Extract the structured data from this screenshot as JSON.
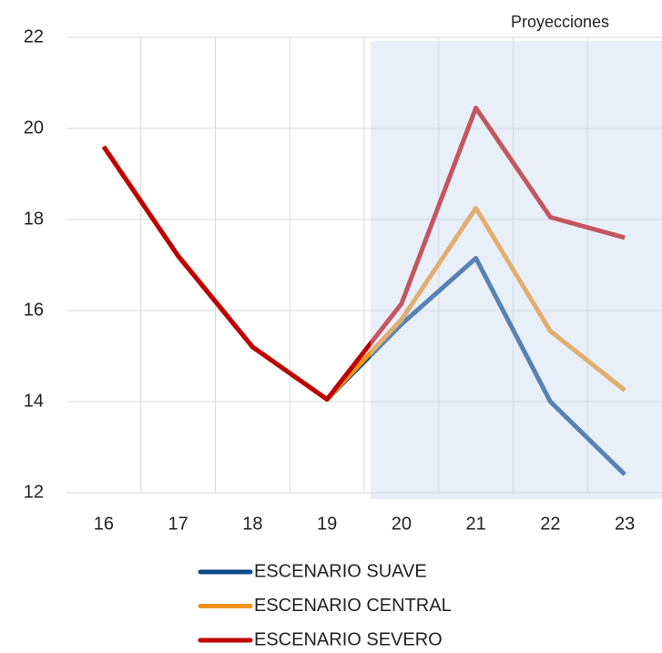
{
  "chart_data": {
    "type": "line",
    "annotation": "Proyecciones",
    "categories": [
      "16",
      "17",
      "18",
      "19",
      "20",
      "21",
      "22",
      "23"
    ],
    "series": [
      {
        "name": "ESCENARIO SUAVE",
        "color": "#0d4a8a",
        "values": [
          19.6,
          17.2,
          15.2,
          14.05,
          15.7,
          17.15,
          14.0,
          12.4
        ]
      },
      {
        "name": "ESCENARIO CENTRAL",
        "color": "#f0931a",
        "values": [
          19.6,
          17.2,
          15.2,
          14.05,
          15.8,
          18.25,
          15.55,
          14.25
        ]
      },
      {
        "name": "ESCENARIO SEVERO",
        "color": "#c00000",
        "values": [
          19.6,
          17.2,
          15.2,
          14.05,
          16.15,
          20.45,
          18.05,
          17.6
        ]
      }
    ],
    "ylim": [
      12,
      22
    ],
    "yticks": [
      12,
      14,
      16,
      18,
      20,
      22
    ],
    "grid": true
  }
}
